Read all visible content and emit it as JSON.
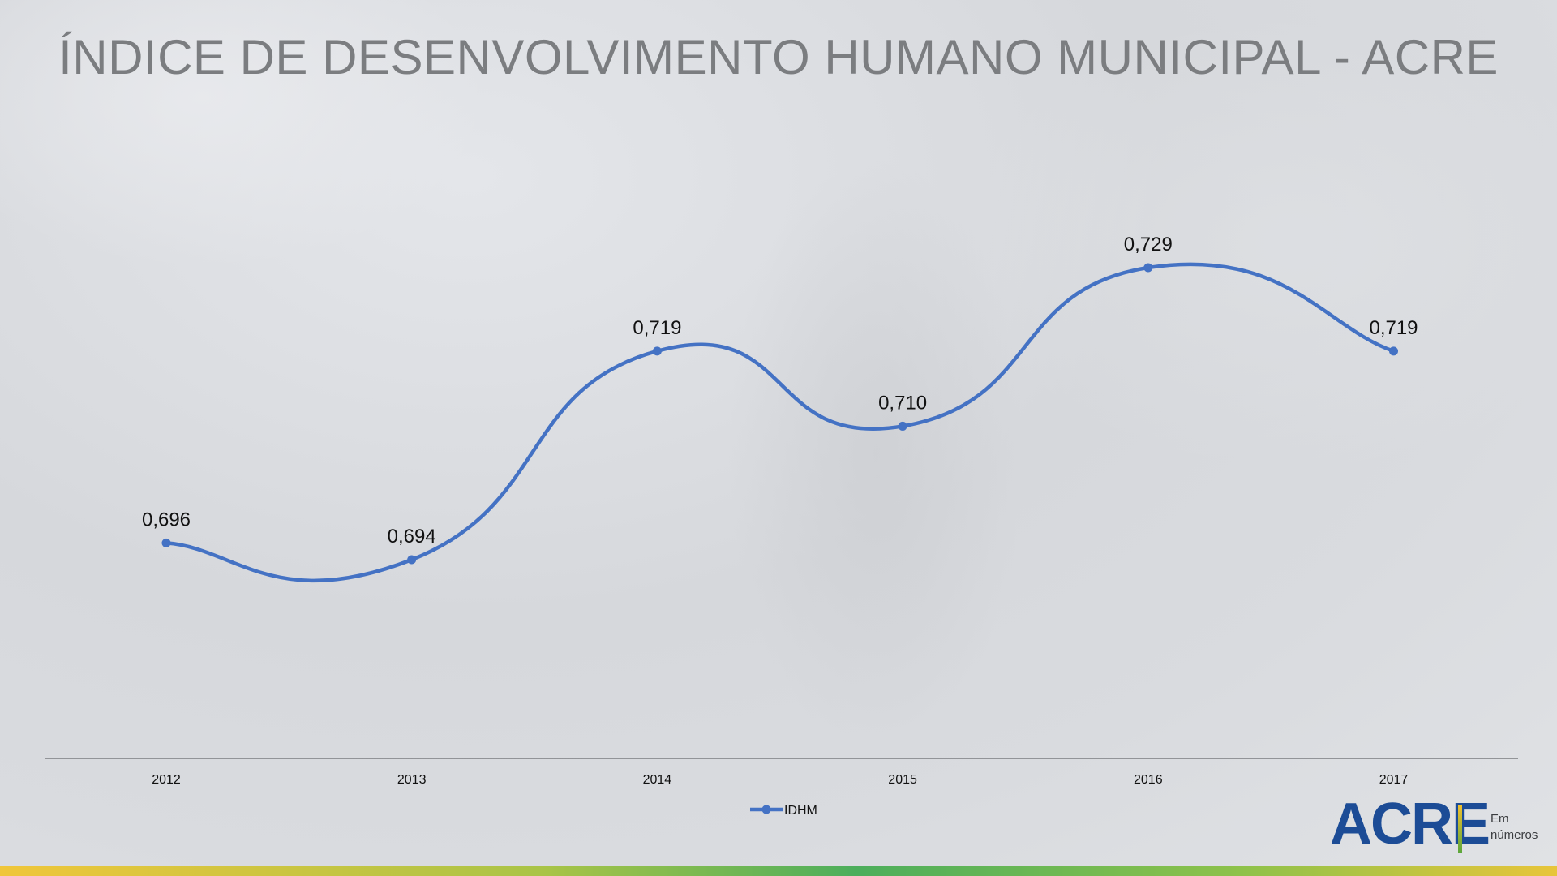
{
  "title": "ÍNDICE DE DESENVOLVIMENTO HUMANO MUNICIPAL - ACRE",
  "chart_data": {
    "type": "line",
    "title": "ÍNDICE DE DESENVOLVIMENTO HUMANO MUNICIPAL - ACRE",
    "categories": [
      "2012",
      "2013",
      "2014",
      "2015",
      "2016",
      "2017"
    ],
    "series": [
      {
        "name": "IDHM",
        "values": [
          0.696,
          0.694,
          0.719,
          0.71,
          0.729,
          0.719
        ],
        "labels": [
          "0,696",
          "0,694",
          "0,719",
          "0,710",
          "0,729",
          "0,719"
        ],
        "color": "#4472c4"
      }
    ],
    "ylim": [
      0.675,
      0.7375
    ],
    "smooth": true,
    "grid": false,
    "legend": "bottom-center",
    "xlabel": "",
    "ylabel": ""
  },
  "logo": {
    "main": "ACRE",
    "sub_line1": "Em",
    "sub_line2": "números"
  },
  "colors": {
    "line": "#4472c4",
    "title": "#7b7d80",
    "logo_blue": "#1c4c96"
  }
}
